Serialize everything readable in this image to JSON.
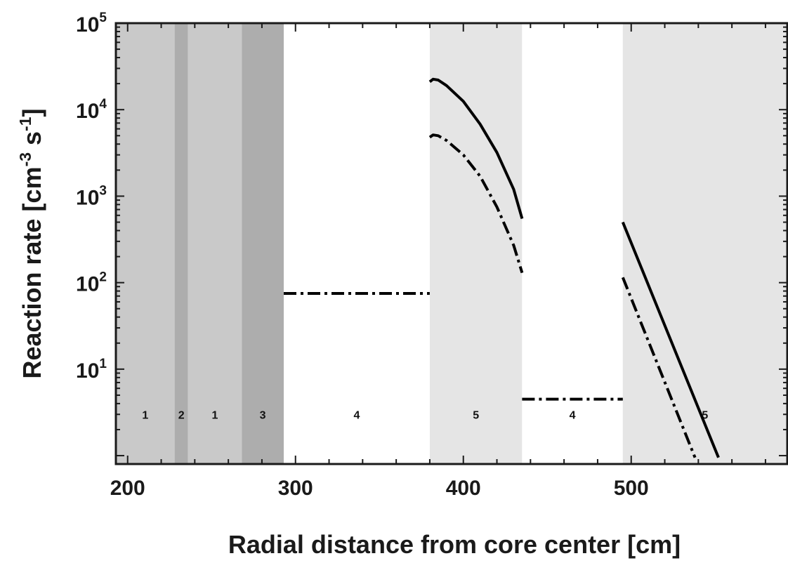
{
  "chart_data": {
    "type": "line",
    "title": "",
    "xlabel": "Radial distance from core center [cm]",
    "ylabel": {
      "prefix": "Reaction rate [cm",
      "exp1": "-3",
      "mid": " s",
      "exp2": "-1",
      "suffix": "]"
    },
    "x_scale": "linear",
    "y_scale": "log",
    "xlim": [
      193,
      593
    ],
    "ylim": [
      0.8,
      100000
    ],
    "x_ticks": [
      200,
      300,
      400,
      500
    ],
    "y_ticks": [
      {
        "value": 10,
        "base": "10",
        "exp": "1"
      },
      {
        "value": 100,
        "base": "10",
        "exp": "2"
      },
      {
        "value": 1000,
        "base": "10",
        "exp": "3"
      },
      {
        "value": 10000,
        "base": "10",
        "exp": "4"
      },
      {
        "value": 100000,
        "base": "10",
        "exp": "5"
      }
    ],
    "grid": false,
    "legend": "none",
    "regions": [
      {
        "label": "1",
        "x0": 193,
        "x1": 228,
        "color": "#c9c9c9"
      },
      {
        "label": "2",
        "x0": 228,
        "x1": 236,
        "color": "#adadad"
      },
      {
        "label": "1",
        "x0": 236,
        "x1": 268,
        "color": "#c9c9c9"
      },
      {
        "label": "3",
        "x0": 268,
        "x1": 293,
        "color": "#adadad"
      },
      {
        "label": "4",
        "x0": 293,
        "x1": 380,
        "color": "#ffffff"
      },
      {
        "label": "5",
        "x0": 380,
        "x1": 435,
        "color": "#e5e5e5"
      },
      {
        "label": "4",
        "x0": 435,
        "x1": 495,
        "color": "#ffffff"
      },
      {
        "label": "5",
        "x0": 495,
        "x1": 593,
        "color": "#e5e5e5"
      }
    ],
    "region_label_y": 3,
    "series": [
      {
        "style": "solid",
        "color": "#000000",
        "segments": [
          [
            [
              380,
              21000
            ],
            [
              382,
              22500
            ],
            [
              385,
              22000
            ],
            [
              390,
              19000
            ],
            [
              400,
              12500
            ],
            [
              410,
              6800
            ],
            [
              420,
              3200
            ],
            [
              430,
              1200
            ],
            [
              435,
              550
            ]
          ],
          [
            [
              495,
              500
            ],
            [
              552,
              0.95
            ]
          ]
        ]
      },
      {
        "style": "dashdot",
        "color": "#000000",
        "segments": [
          [
            [
              293,
              75
            ],
            [
              380,
              75
            ]
          ],
          [
            [
              380,
              4800
            ],
            [
              382,
              5100
            ],
            [
              385,
              5000
            ],
            [
              390,
              4400
            ],
            [
              400,
              3000
            ],
            [
              410,
              1700
            ],
            [
              420,
              750
            ],
            [
              430,
              270
            ],
            [
              435,
              130
            ]
          ],
          [
            [
              435,
              4.5
            ],
            [
              495,
              4.5
            ]
          ],
          [
            [
              495,
              115
            ],
            [
              538,
              0.95
            ]
          ]
        ]
      }
    ]
  }
}
